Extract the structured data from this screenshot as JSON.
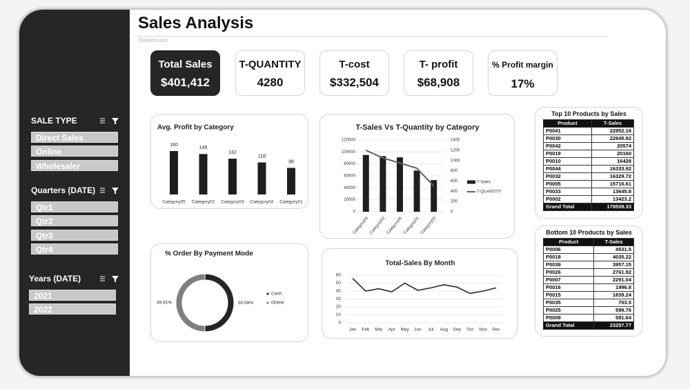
{
  "header": {
    "title": "Sales Analysis",
    "subtitle": "Dashboard"
  },
  "slicers": [
    {
      "title": "SALE TYPE",
      "items": [
        "Direct Sales",
        "Online",
        "Wholesaler"
      ]
    },
    {
      "title": "Quarters (DATE)",
      "items": [
        "Qtr1",
        "Qtr2",
        "Qtr3",
        "Qtr4"
      ]
    },
    {
      "title": "Years (DATE)",
      "items": [
        "2021",
        "2022"
      ]
    }
  ],
  "kpis": [
    {
      "label": "Total Sales",
      "value": "$401,412"
    },
    {
      "label": "T-QUANTITY",
      "value": "4280"
    },
    {
      "label": "T-cost",
      "value": "$332,504"
    },
    {
      "label": "T- profit",
      "value": "$68,908"
    },
    {
      "label": "% Profit margin",
      "value": "17%"
    }
  ],
  "chart_data": [
    {
      "type": "bar",
      "title": "Avg. Profit by Category",
      "categories": [
        "Category05",
        "Category02",
        "Category03",
        "Category04",
        "Category01"
      ],
      "values": [
        160,
        149,
        132,
        118,
        98
      ],
      "color": "#1f1f1f"
    },
    {
      "type": "combo",
      "title": "T-Sales Vs T-Quantity by Category",
      "categories": [
        "Category04",
        "Category02",
        "Category05",
        "Category01",
        "Category03"
      ],
      "series": [
        {
          "name": "T-Sales",
          "type": "bar",
          "axis": "y",
          "color": "#1f1f1f",
          "values": [
            95000,
            93000,
            91000,
            69000,
            53000
          ]
        },
        {
          "name": "T-QUANTITY",
          "type": "line",
          "axis": "y2",
          "color": "#5f5f5f",
          "values": [
            1200,
            1050,
            950,
            850,
            500
          ]
        }
      ],
      "ylim": [
        0,
        120000
      ],
      "yticks": [
        0,
        20000,
        40000,
        60000,
        80000,
        100000,
        120000
      ],
      "y2lim": [
        0,
        1400
      ],
      "y2ticks": [
        0,
        200,
        400,
        600,
        800,
        1000,
        1200,
        1400
      ],
      "grid": true,
      "legend": "right"
    },
    {
      "type": "donut",
      "title": "% Order By Payment Mode",
      "categories": [
        "Cash",
        "Online"
      ],
      "values": [
        50.09,
        49.91
      ],
      "value_labels": [
        "50.09%",
        "49.91%"
      ],
      "colors": [
        "#262626",
        "#7f7f7f"
      ],
      "legend": "right"
    },
    {
      "type": "line",
      "title": "Total-Sales By Month",
      "categories": [
        "Jan",
        "Feb",
        "Mar",
        "Apr",
        "May",
        "Jun",
        "Jul",
        "Aug",
        "Sep",
        "Oct",
        "Nov",
        "Dec"
      ],
      "values": [
        56,
        40,
        43,
        39,
        50,
        41,
        44,
        48,
        45,
        37,
        40,
        44
      ],
      "color": "#262626",
      "ylim": [
        0,
        60
      ],
      "yticks": [
        0,
        10,
        20,
        30,
        40,
        50,
        60
      ],
      "grid": true
    }
  ],
  "tables": [
    {
      "title": "Top 10 Products by Sales",
      "columns": [
        "Product",
        "T-Sales"
      ],
      "rows": [
        [
          "P0041",
          "22952.16"
        ],
        [
          "P0030",
          "22945.92"
        ],
        [
          "P0042",
          "20574"
        ],
        [
          "P0019",
          "20160"
        ],
        [
          "P0010",
          "16428"
        ],
        [
          "P0044",
          "16333.92"
        ],
        [
          "P0032",
          "16329.72"
        ],
        [
          "P0005",
          "15716.61"
        ],
        [
          "P0033",
          "13645.8"
        ],
        [
          "P0002",
          "13423.2"
        ]
      ],
      "total": [
        "Grand Total",
        "178509.33"
      ]
    },
    {
      "title": "Bottom 10 Products by Sales",
      "columns": [
        "Product",
        "T-Sales"
      ],
      "rows": [
        [
          "P0006",
          "4531.5"
        ],
        [
          "P0018",
          "4035.22"
        ],
        [
          "P0039",
          "3957.15"
        ],
        [
          "P0026",
          "2761.92"
        ],
        [
          "P0007",
          "2291.04"
        ],
        [
          "P0016",
          "1996.8"
        ],
        [
          "P0015",
          "1839.24"
        ],
        [
          "P0035",
          "703.5"
        ],
        [
          "P0025",
          "599.76"
        ],
        [
          "P0009",
          "581.64"
        ]
      ],
      "total": [
        "Grand Total",
        "23297.77"
      ]
    }
  ]
}
